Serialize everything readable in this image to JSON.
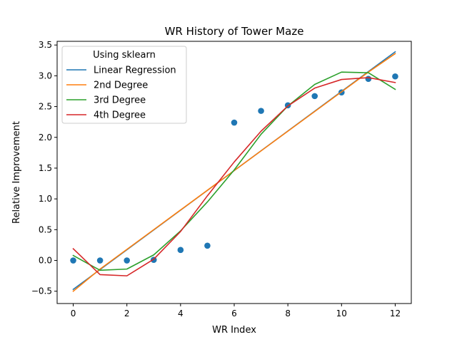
{
  "chart_data": {
    "type": "scatter+line",
    "title": "WR History of Tower Maze",
    "xlabel": "WR Index",
    "ylabel": "Relative Improvement",
    "xlim": [
      -0.6,
      12.6
    ],
    "ylim": [
      -0.7,
      3.56
    ],
    "xticks": [
      0,
      2,
      4,
      6,
      8,
      10,
      12
    ],
    "yticks": [
      -0.5,
      0.0,
      0.5,
      1.0,
      1.5,
      2.0,
      2.5,
      3.0,
      3.5
    ],
    "ytick_labels": [
      "−0.5",
      "0.0",
      "0.5",
      "1.0",
      "1.5",
      "2.0",
      "2.5",
      "3.0",
      "3.5"
    ],
    "grid": false,
    "legend": {
      "title": "Using sklearn",
      "placement": "top-left"
    },
    "points": {
      "color": "#1f77b4",
      "x": [
        0,
        1,
        2,
        3,
        4,
        5,
        6,
        7,
        8,
        9,
        10,
        11,
        12
      ],
      "y": [
        0.0,
        0.0,
        0.0,
        0.01,
        0.17,
        0.24,
        2.24,
        2.43,
        2.52,
        2.67,
        2.73,
        2.95,
        2.99
      ]
    },
    "series": [
      {
        "name": "Linear Regression",
        "color": "#1f77b4",
        "x": [
          0,
          12
        ],
        "y": [
          -0.47,
          3.39
        ]
      },
      {
        "name": "2nd Degree",
        "color": "#ff7f0e",
        "x": [
          0,
          1,
          2,
          3,
          4,
          5,
          6,
          7,
          8,
          9,
          10,
          11,
          12
        ],
        "y": [
          -0.5,
          -0.14,
          0.18,
          0.5,
          0.82,
          1.14,
          1.46,
          1.78,
          2.1,
          2.42,
          2.74,
          3.06,
          3.36
        ]
      },
      {
        "name": "3rd Degree",
        "color": "#2ca02c",
        "x": [
          0,
          1,
          2,
          3,
          4,
          5,
          6,
          7,
          8,
          9,
          10,
          11,
          12
        ],
        "y": [
          0.08,
          -0.16,
          -0.14,
          0.09,
          0.48,
          0.95,
          1.47,
          2.05,
          2.51,
          2.86,
          3.06,
          3.05,
          2.78
        ]
      },
      {
        "name": "4th Degree",
        "color": "#d62728",
        "x": [
          0,
          1,
          2,
          3,
          4,
          5,
          6,
          7,
          8,
          9,
          10,
          11,
          12
        ],
        "y": [
          0.19,
          -0.23,
          -0.25,
          0.02,
          0.47,
          1.05,
          1.6,
          2.1,
          2.51,
          2.8,
          2.94,
          2.97,
          2.89
        ]
      }
    ]
  }
}
